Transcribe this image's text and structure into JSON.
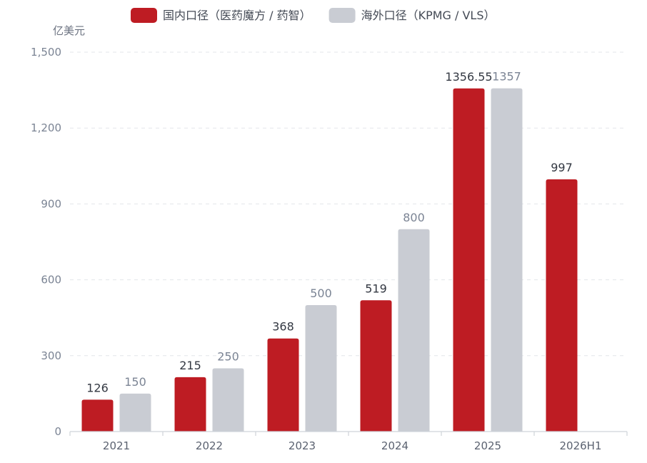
{
  "chart_data": {
    "type": "bar",
    "ylabel": "亿美元",
    "ylim": [
      0,
      1500
    ],
    "yticks": [
      0,
      300,
      600,
      900,
      1200,
      1500
    ],
    "ytick_labels": [
      "0",
      "300",
      "600",
      "900",
      "1,200",
      "1,500"
    ],
    "grid": true,
    "legend_position": "top-center",
    "categories": [
      "2021",
      "2022",
      "2023",
      "2024",
      "2025",
      "2026H1"
    ],
    "series": [
      {
        "name": "国内口径（医药魔方 / 药智）",
        "color": "#be1c23",
        "values": [
          126,
          215,
          368,
          519,
          1356.55,
          997
        ],
        "labels": [
          "126",
          "215",
          "368",
          "519",
          "1356.55",
          "997"
        ]
      },
      {
        "name": "海外口径（KPMG / VLS）",
        "color": "#c9ccd3",
        "values": [
          150,
          250,
          500,
          800,
          1357,
          null
        ],
        "labels": [
          "150",
          "250",
          "500",
          "800",
          "1357",
          null
        ]
      }
    ]
  }
}
